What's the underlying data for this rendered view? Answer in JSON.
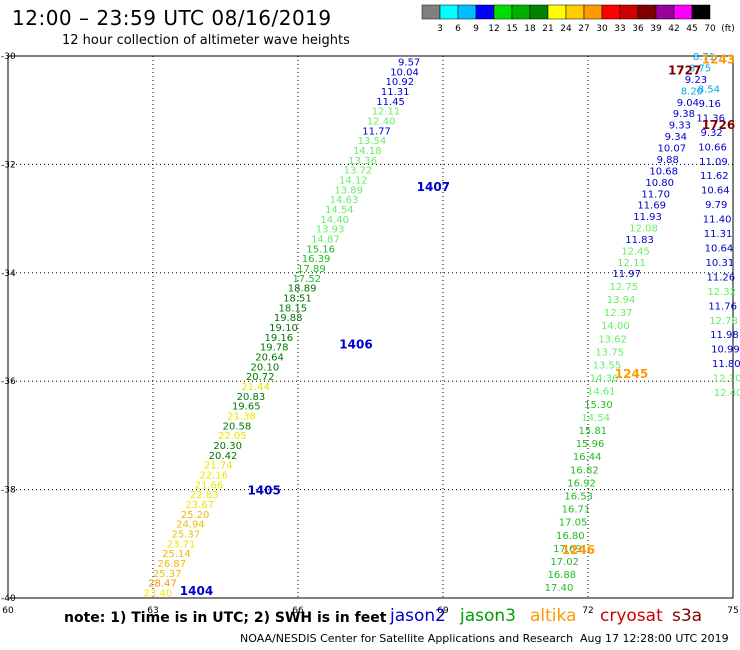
{
  "header": {
    "title": "12:00 – 23:59 UTC 08/16/2019",
    "subtitle": "12 hour collection of altimeter wave heights"
  },
  "colorbar": {
    "labels": [
      "3",
      "6",
      "9",
      "12",
      "15",
      "18",
      "21",
      "24",
      "27",
      "30",
      "33",
      "36",
      "39",
      "42",
      "45",
      "70",
      "(ft)"
    ],
    "colors": [
      "#808080",
      "#00ffff",
      "#00bfff",
      "#0000ff",
      "#00dd00",
      "#00b000",
      "#008000",
      "#ffff00",
      "#ffcc00",
      "#ff9900",
      "#ff0000",
      "#cc0000",
      "#800000",
      "#990099",
      "#ff00ff",
      "#000000"
    ]
  },
  "footer": {
    "note": "note:  1) Time is in UTC;  2) SWH is in feet",
    "missions": [
      {
        "name": "jason2",
        "color": "#0000cc"
      },
      {
        "name": "jason3",
        "color": "#00a000"
      },
      {
        "name": "altika",
        "color": "#ff9900"
      },
      {
        "name": "cryosat",
        "color": "#cc0000"
      },
      {
        "name": "s3a",
        "color": "#800000"
      }
    ],
    "credit": "NOAA/NESDIS Center for Satellite Applications and Research",
    "timestamp": "Aug 17 12:28:00 UTC 2019"
  },
  "chart_data": {
    "type": "scatter",
    "x_ticks": [
      "60",
      "63",
      "66",
      "69",
      "72",
      "75"
    ],
    "y_ticks": [
      "-30",
      "-32",
      "-34",
      "-36",
      "-38",
      "-40"
    ],
    "xlim": [
      60,
      75
    ],
    "ylim": [
      -40,
      -30
    ],
    "grid": true,
    "time_labels": [
      {
        "text": "1407",
        "x": 68.8,
        "y": -32.4,
        "color": "#0000cc"
      },
      {
        "text": "1406",
        "x": 67.2,
        "y": -35.3,
        "color": "#0000cc"
      },
      {
        "text": "1405",
        "x": 65.3,
        "y": -38.0,
        "color": "#0000cc"
      },
      {
        "text": "1404",
        "x": 63.9,
        "y": -39.85,
        "color": "#0000cc"
      },
      {
        "text": "1245",
        "x": 72.9,
        "y": -35.85,
        "color": "#ff9900"
      },
      {
        "text": "1246",
        "x": 71.8,
        "y": -39.1,
        "color": "#ff9900"
      },
      {
        "text": "1243",
        "x": 74.7,
        "y": -30.05,
        "color": "#ff9900"
      },
      {
        "text": "1727",
        "x": 74.0,
        "y": -30.25,
        "color": "#800000"
      },
      {
        "text": "1726",
        "x": 74.7,
        "y": -31.25,
        "color": "#800000"
      }
    ],
    "tracks": [
      {
        "name": "jason2 pass 1404-1407",
        "x_start": 68.3,
        "y_start": -30.1,
        "x_end": 63.1,
        "y_end": -39.9,
        "values": [
          9.57,
          10.04,
          10.92,
          11.31,
          11.45,
          12.11,
          12.4,
          11.77,
          13.54,
          14.18,
          13.36,
          13.72,
          14.12,
          13.89,
          14.63,
          14.54,
          14.4,
          13.93,
          14.87,
          15.16,
          16.39,
          17.89,
          17.52,
          18.89,
          18.51,
          18.15,
          19.88,
          19.1,
          19.16,
          19.78,
          20.64,
          20.1,
          20.72,
          21.44,
          20.83,
          19.65,
          21.38,
          20.58,
          22.05,
          20.3,
          20.42,
          21.74,
          22.16,
          21.66,
          22.83,
          23.67,
          25.2,
          24.94,
          25.37,
          23.71,
          25.14,
          26.87,
          25.37,
          28.47,
          23.4
        ]
      },
      {
        "name": "altika pass 1245-1246",
        "x_start": 72.8,
        "y_start": -34.0,
        "x_end": 71.4,
        "y_end": -39.8,
        "values": [
          11.97,
          12.75,
          13.94,
          12.37,
          14.0,
          13.62,
          13.75,
          13.55,
          14.36,
          14.61,
          15.3,
          14.54,
          15.81,
          15.96,
          16.44,
          16.82,
          16.92,
          16.53,
          16.71,
          17.05,
          16.8,
          17.69,
          17.02,
          16.88,
          17.4
        ]
      },
      {
        "name": "altika pass 1243",
        "x_start": 74.4,
        "y_start": -30.0,
        "x_end": 72.9,
        "y_end": -33.8,
        "values": [
          8.71,
          8.75,
          9.23,
          8.2,
          9.04,
          9.38,
          9.33,
          9.34,
          10.07,
          9.88,
          10.68,
          10.8,
          11.7,
          11.69,
          11.93,
          12.08,
          11.83,
          12.45,
          12.11
        ]
      },
      {
        "name": "s3a pass 1726-1727",
        "x_start": 74.5,
        "y_start": -30.6,
        "x_end": 74.9,
        "y_end": -36.2,
        "values": [
          8.54,
          9.16,
          11.36,
          9.32,
          10.66,
          11.09,
          11.62,
          10.64,
          9.79,
          11.4,
          11.31,
          10.64,
          10.31,
          11.26,
          12.32,
          11.76,
          12.78,
          11.98,
          10.99,
          11.8,
          12.1,
          12.4
        ]
      }
    ]
  }
}
